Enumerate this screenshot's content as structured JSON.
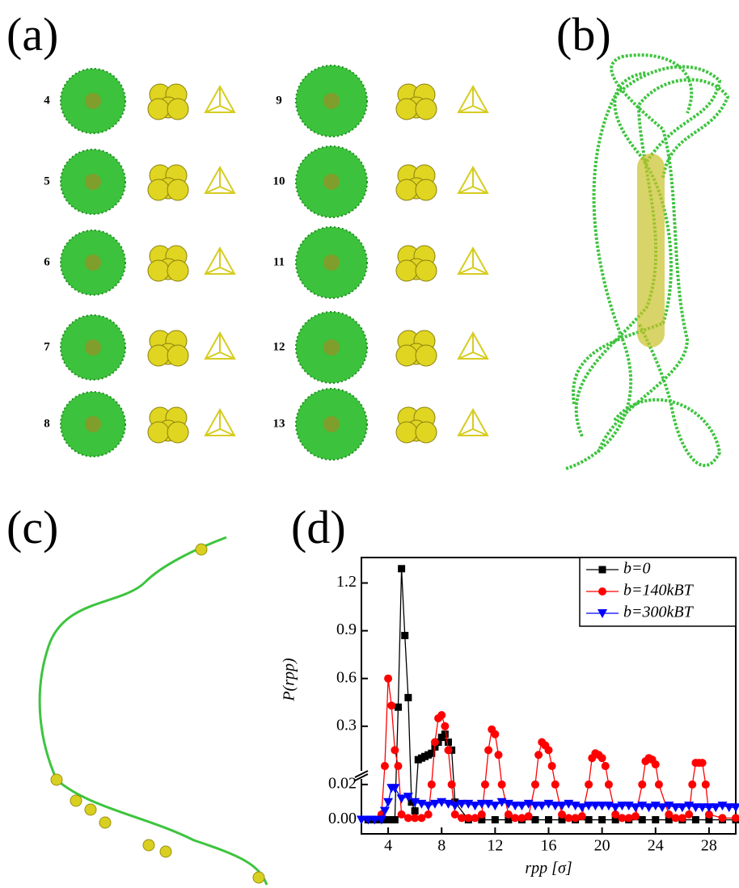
{
  "panel_a": {
    "label": "(a)",
    "cluster_sizes": [
      4,
      5,
      6,
      7,
      8,
      9,
      10,
      11,
      12,
      13
    ]
  },
  "panel_b": {
    "label": "(b)"
  },
  "panel_c": {
    "label": "(c)"
  },
  "panel_d": {
    "label": "(d)"
  },
  "chart_data": {
    "type": "line",
    "x_label": "rpp [σ]",
    "y_label": "P(rpp)",
    "xlim": [
      2,
      30
    ],
    "xticks": [
      4,
      8,
      12,
      16,
      20,
      24,
      28
    ],
    "ylim_lower": [
      -0.008,
      0.025
    ],
    "yticks_lower": [
      {
        "value": 0,
        "label": "0.00"
      },
      0.02
    ],
    "ylim_upper": [
      0.03,
      1.36
    ],
    "yticks_upper": [
      0.3,
      0.6,
      0.9,
      1.2
    ],
    "legend": "upper right",
    "series": [
      {
        "name": "b=0",
        "color": "#000000",
        "marker": "square",
        "x": [
          2.5,
          3,
          3.5,
          4,
          4.5,
          4.75,
          5,
          5.25,
          5.5,
          5.75,
          6,
          6.25,
          6.5,
          6.75,
          7,
          7.25,
          7.5,
          7.75,
          8,
          8.25,
          8.5,
          8.75,
          9,
          10,
          11,
          12,
          13,
          14,
          15,
          16,
          17,
          18,
          19,
          20,
          21,
          22,
          23,
          24,
          25,
          26,
          27,
          28,
          29,
          30
        ],
        "values": [
          0,
          0,
          0,
          0,
          0,
          0.42,
          1.29,
          0.87,
          0.48,
          0.01,
          0.005,
          0.09,
          0.1,
          0.11,
          0.12,
          0.13,
          0.17,
          0.2,
          0.23,
          0.25,
          0.2,
          0.15,
          0.01,
          0,
          0,
          0,
          0,
          0,
          0,
          0,
          0,
          0,
          0,
          0,
          0,
          0,
          0,
          0,
          0,
          0,
          0,
          0,
          0,
          0
        ]
      },
      {
        "name": "b=140kBT",
        "color": "#ff0000",
        "marker": "circle",
        "x": [
          3.5,
          3.75,
          4,
          4.25,
          4.5,
          4.75,
          5,
          5.5,
          6,
          6.5,
          7,
          7.25,
          7.5,
          7.75,
          8,
          8.25,
          8.5,
          8.75,
          9,
          9.5,
          10,
          10.5,
          11,
          11.25,
          11.5,
          11.75,
          12,
          12.25,
          12.5,
          13,
          13.5,
          14,
          14.5,
          15,
          15.25,
          15.5,
          15.75,
          16,
          16.25,
          16.5,
          17,
          17.5,
          18,
          18.5,
          19,
          19.25,
          19.5,
          19.75,
          20,
          20.25,
          20.5,
          21,
          21.5,
          22,
          22.5,
          23,
          23.25,
          23.5,
          23.75,
          24,
          24.25,
          25,
          25.5,
          26,
          26.5,
          26.75,
          27,
          27.25,
          27.5,
          27.75,
          28,
          29,
          30
        ],
        "values": [
          0.003,
          0.05,
          0.6,
          0.43,
          0.15,
          0.05,
          0.003,
          0.001,
          0.001,
          0.001,
          0.003,
          0.02,
          0.2,
          0.35,
          0.37,
          0.3,
          0.15,
          0.02,
          0.003,
          0.001,
          0.001,
          0.001,
          0.003,
          0.02,
          0.15,
          0.28,
          0.25,
          0.12,
          0.02,
          0.003,
          0.001,
          0.001,
          0.002,
          0.02,
          0.12,
          0.2,
          0.18,
          0.15,
          0.05,
          0.02,
          0.003,
          0.001,
          0.001,
          0.002,
          0.02,
          0.1,
          0.13,
          0.12,
          0.1,
          0.05,
          0.02,
          0.003,
          0.001,
          0.001,
          0.002,
          0.02,
          0.08,
          0.1,
          0.09,
          0.06,
          0.02,
          0.003,
          0.001,
          0.001,
          0.003,
          0.02,
          0.07,
          0.07,
          0.07,
          0.02,
          0.003,
          0.001,
          0.001
        ]
      },
      {
        "name": "b=300kBT",
        "color": "#0000ff",
        "marker": "triangle",
        "x": [
          2,
          2.5,
          3,
          3.5,
          3.75,
          4,
          4.25,
          4.5,
          5,
          5.5,
          6,
          6.5,
          7,
          7.5,
          8,
          8.5,
          9,
          9.5,
          10,
          10.5,
          11,
          11.5,
          12,
          12.5,
          13,
          13.5,
          14,
          14.5,
          15,
          15.5,
          16,
          16.5,
          17,
          17.5,
          18,
          18.5,
          19,
          19.5,
          20,
          20.5,
          21,
          21.5,
          22,
          22.5,
          23,
          23.5,
          24,
          24.5,
          25,
          25.5,
          26,
          26.5,
          27,
          27.5,
          28,
          28.5,
          29,
          29.5,
          30
        ],
        "values": [
          0,
          0,
          0,
          0,
          0.005,
          0.01,
          0.018,
          0.018,
          0.012,
          0.013,
          0.01,
          0.009,
          0.008,
          0.009,
          0.01,
          0.009,
          0.008,
          0.009,
          0.009,
          0.008,
          0.009,
          0.009,
          0.008,
          0.01,
          0.009,
          0.008,
          0.008,
          0.009,
          0.008,
          0.008,
          0.009,
          0.008,
          0.008,
          0.009,
          0.008,
          0.007,
          0.008,
          0.008,
          0.008,
          0.008,
          0.007,
          0.008,
          0.008,
          0.007,
          0.008,
          0.007,
          0.008,
          0.007,
          0.008,
          0.007,
          0.007,
          0.008,
          0.007,
          0.007,
          0.007,
          0.007,
          0.008,
          0.007,
          0.007
        ]
      }
    ]
  }
}
